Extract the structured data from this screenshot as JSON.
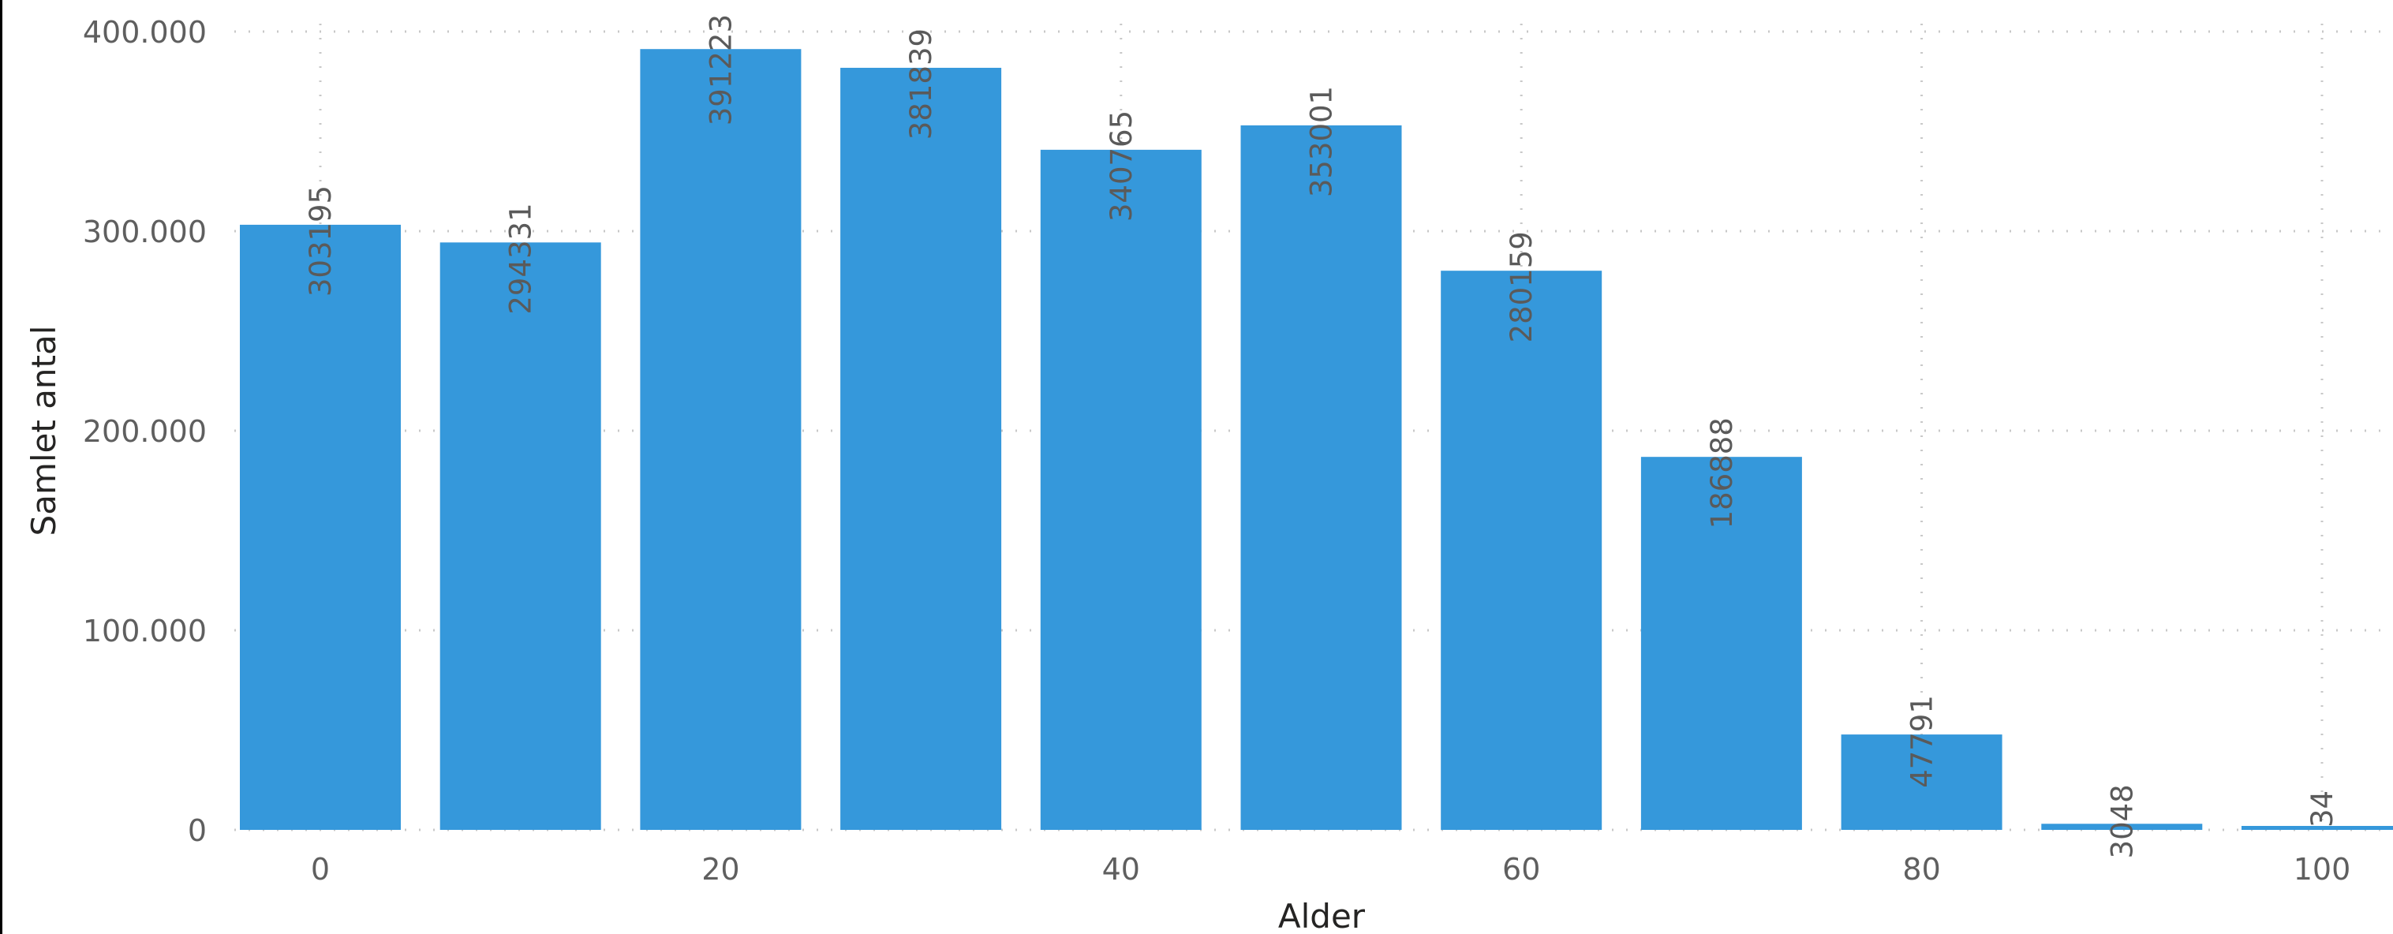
{
  "chart_data": {
    "type": "bar",
    "xlabel": "Alder",
    "ylabel": "Samlet antal",
    "categories": [
      0,
      10,
      20,
      30,
      40,
      50,
      60,
      70,
      80,
      90,
      100
    ],
    "values": [
      303195,
      294331,
      391223,
      381839,
      340765,
      353001,
      280159,
      186888,
      47791,
      3048,
      34
    ],
    "data_labels": [
      "303195",
      "294331",
      "391223",
      "381839",
      "340765",
      "353001",
      "280159",
      "186888",
      "47791",
      "3048",
      "34"
    ],
    "x_ticks": [
      "0",
      "20",
      "40",
      "60",
      "80",
      "100"
    ],
    "x_tick_values": [
      0,
      20,
      40,
      60,
      80,
      100
    ],
    "y_ticks": [
      "0",
      "100.000",
      "200.000",
      "300.000",
      "400.000"
    ],
    "y_tick_values": [
      0,
      100000,
      200000,
      300000,
      400000
    ],
    "ylim": [
      0,
      400000
    ],
    "grid": true,
    "legend": "none",
    "colors": {
      "bar": "#3598db",
      "grid": "#c8c8c8",
      "tick_text": "#5f5f5f",
      "axis_title": "#252423"
    }
  }
}
